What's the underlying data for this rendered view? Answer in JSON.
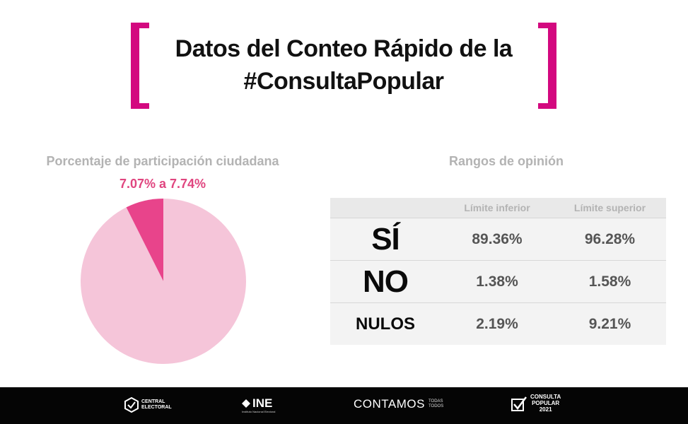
{
  "header": {
    "title_line1": "Datos del Conteo Rápido de la",
    "title_line2": "#ConsultaPopular"
  },
  "chart_data": [
    {
      "type": "pie",
      "title": "Porcentaje de participación ciudadana",
      "range_label": "7.07% a 7.74%",
      "values": [
        7.4,
        92.6
      ],
      "colors": [
        "#e8448b",
        "#f5c5d9"
      ]
    },
    {
      "type": "table",
      "title": "Rangos de opinión",
      "columns": [
        "",
        "Límite inferior",
        "Límite superior"
      ],
      "rows": [
        {
          "label": "SÍ",
          "lower": "89.36%",
          "upper": "96.28%"
        },
        {
          "label": "NO",
          "lower": "1.38%",
          "upper": "1.58%"
        },
        {
          "label": "NULOS",
          "lower": "2.19%",
          "upper": "9.21%"
        }
      ]
    }
  ],
  "footer": {
    "central_electoral": "CENTRAL ELECTORAL",
    "ine": "INE",
    "ine_sub": "Instituto Nacional Electoral",
    "contamos": "CONTAMOS",
    "contamos_top": "TODAS",
    "contamos_bottom": "TODOS",
    "consulta_line1": "CONSULTA",
    "consulta_line2": "POPULAR",
    "consulta_year": "2021"
  },
  "icons": [
    "central-electoral-logo-icon",
    "ine-logo-icon",
    "check-box-icon"
  ],
  "accent_color": "#d3097f"
}
